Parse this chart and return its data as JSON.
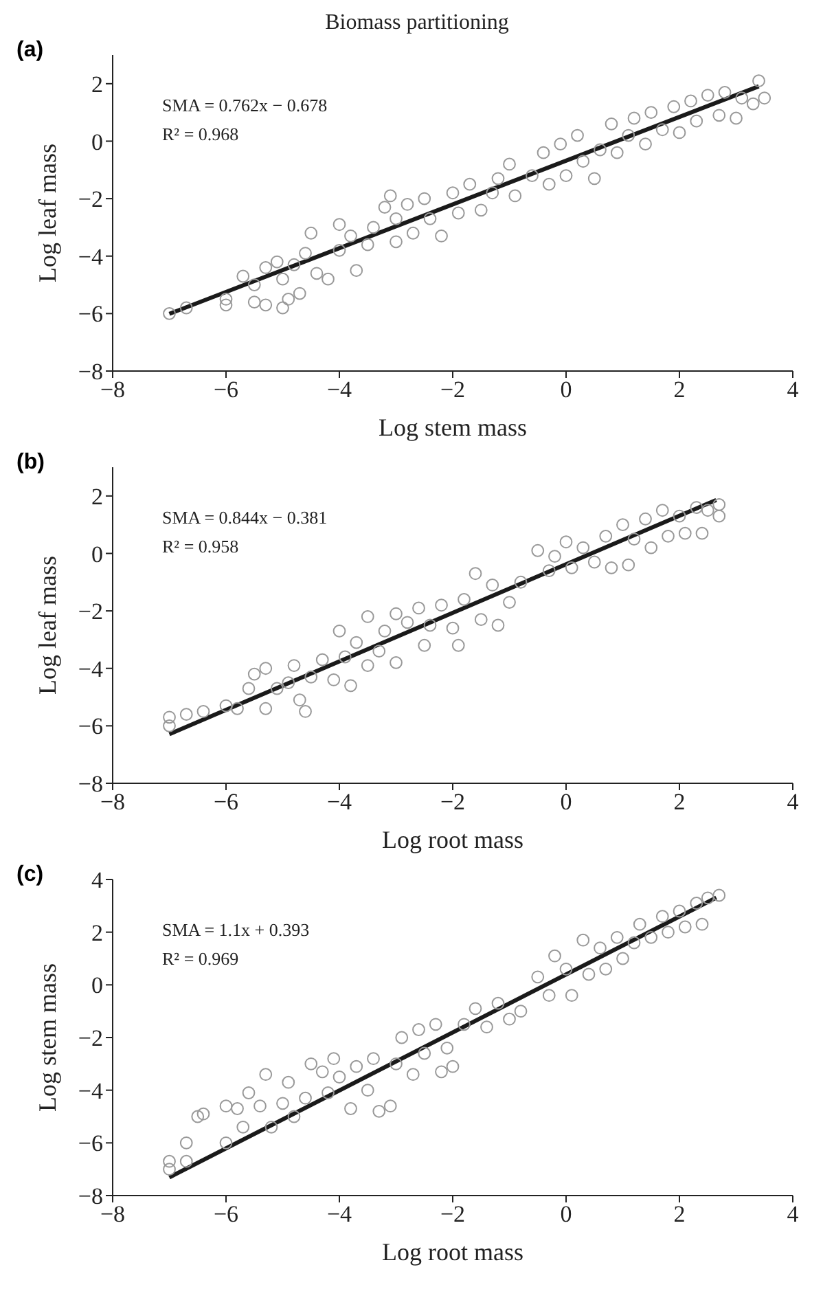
{
  "chart_data": [
    {
      "type": "scatter",
      "title": "Biomass partitioning",
      "xlabel": "Log stem mass",
      "ylabel": "Log leaf mass",
      "annotations": [
        "(a)",
        "SMA = 0.762x − 0.678",
        "R² = 0.968"
      ],
      "xlim": [
        -8,
        4
      ],
      "xticks": [
        -8,
        -6,
        -4,
        -2,
        0,
        2,
        4
      ],
      "ylim": [
        -8,
        3
      ],
      "yticks": [
        -8,
        -6,
        -4,
        -2,
        0,
        2
      ],
      "series": [
        {
          "marker": "circle",
          "color": "#999999",
          "x": [
            -7,
            -6.7,
            -6,
            -6,
            -5.7,
            -5.5,
            -5.5,
            -5.3,
            -5.3,
            -5.1,
            -5,
            -5,
            -4.9,
            -4.8,
            -4.7,
            -4.6,
            -4.5,
            -4.4,
            -4.2,
            -4,
            -4,
            -3.8,
            -3.7,
            -3.5,
            -3.4,
            -3.2,
            -3.1,
            -3,
            -3,
            -2.8,
            -2.7,
            -2.5,
            -2.4,
            -2.2,
            -2,
            -1.9,
            -1.7,
            -1.5,
            -1.3,
            -1.2,
            -1,
            -0.9,
            -0.6,
            -0.4,
            -0.3,
            -0.1,
            0,
            0.2,
            0.3,
            0.5,
            0.6,
            0.8,
            0.9,
            1.1,
            1.2,
            1.4,
            1.5,
            1.7,
            1.9,
            2,
            2.2,
            2.3,
            2.5,
            2.7,
            2.8,
            3,
            3.1,
            3.3,
            3.4,
            3.5
          ],
          "values": [
            -6,
            -5.8,
            -5.5,
            -5.7,
            -4.7,
            -5,
            -5.6,
            -4.4,
            -5.7,
            -4.2,
            -4.8,
            -5.8,
            -5.5,
            -4.3,
            -5.3,
            -3.9,
            -3.2,
            -4.6,
            -4.8,
            -2.9,
            -3.8,
            -3.3,
            -4.5,
            -3.6,
            -3,
            -2.3,
            -1.9,
            -3.5,
            -2.7,
            -2.2,
            -3.2,
            -2,
            -2.7,
            -3.3,
            -1.8,
            -2.5,
            -1.5,
            -2.4,
            -1.8,
            -1.3,
            -0.8,
            -1.9,
            -1.2,
            -0.4,
            -1.5,
            -0.1,
            -1.2,
            0.2,
            -0.7,
            -1.3,
            -0.3,
            0.6,
            -0.4,
            0.2,
            0.8,
            -0.1,
            1,
            0.4,
            1.2,
            0.3,
            1.4,
            0.7,
            1.6,
            0.9,
            1.7,
            0.8,
            1.5,
            1.3,
            2.1,
            1.5
          ]
        },
        {
          "type": "line",
          "color": "#1a1a1a",
          "x": [
            -7,
            3.4
          ],
          "values": [
            -6.01,
            1.91
          ]
        }
      ]
    },
    {
      "type": "scatter",
      "xlabel": "Log root mass",
      "ylabel": "Log leaf mass",
      "annotations": [
        "(b)",
        "SMA = 0.844x − 0.381",
        "R² = 0.958"
      ],
      "xlim": [
        -8,
        4
      ],
      "xticks": [
        -8,
        -6,
        -4,
        -2,
        0,
        2,
        4
      ],
      "ylim": [
        -8,
        3
      ],
      "yticks": [
        -8,
        -6,
        -4,
        -2,
        0,
        2
      ],
      "series": [
        {
          "marker": "circle",
          "color": "#999999",
          "x": [
            -7,
            -7,
            -6.7,
            -6.4,
            -6,
            -5.8,
            -5.6,
            -5.5,
            -5.3,
            -5.3,
            -5.1,
            -4.9,
            -4.8,
            -4.7,
            -4.6,
            -4.5,
            -4.3,
            -4.1,
            -4,
            -3.9,
            -3.8,
            -3.7,
            -3.5,
            -3.5,
            -3.3,
            -3.2,
            -3,
            -3,
            -2.8,
            -2.6,
            -2.5,
            -2.4,
            -2.2,
            -2,
            -1.9,
            -1.8,
            -1.6,
            -1.5,
            -1.3,
            -1.2,
            -1,
            -0.8,
            -0.5,
            -0.3,
            -0.2,
            0,
            0.1,
            0.3,
            0.5,
            0.7,
            0.8,
            1,
            1.1,
            1.2,
            1.4,
            1.5,
            1.7,
            1.8,
            2,
            2.1,
            2.3,
            2.4,
            2.5,
            2.7,
            2.7
          ],
          "values": [
            -5.7,
            -6,
            -5.6,
            -5.5,
            -5.3,
            -5.4,
            -4.7,
            -4.2,
            -4,
            -5.4,
            -4.7,
            -4.5,
            -3.9,
            -5.1,
            -5.5,
            -4.3,
            -3.7,
            -4.4,
            -2.7,
            -3.6,
            -4.6,
            -3.1,
            -2.2,
            -3.9,
            -3.4,
            -2.7,
            -2.1,
            -3.8,
            -2.4,
            -1.9,
            -3.2,
            -2.5,
            -1.8,
            -2.6,
            -3.2,
            -1.6,
            -0.7,
            -2.3,
            -1.1,
            -2.5,
            -1.7,
            -1,
            0.1,
            -0.6,
            -0.1,
            0.4,
            -0.5,
            0.2,
            -0.3,
            0.6,
            -0.5,
            1,
            -0.4,
            0.5,
            1.2,
            0.2,
            1.5,
            0.6,
            1.3,
            0.7,
            1.6,
            0.7,
            1.5,
            1.3,
            1.7
          ]
        },
        {
          "type": "line",
          "color": "#1a1a1a",
          "x": [
            -7,
            2.65
          ],
          "values": [
            -6.29,
            1.86
          ]
        }
      ]
    },
    {
      "type": "scatter",
      "xlabel": "Log root mass",
      "ylabel": "Log stem mass",
      "annotations": [
        "(c)",
        "SMA = 1.1x + 0.393",
        "R² = 0.969"
      ],
      "xlim": [
        -8,
        4
      ],
      "xticks": [
        -8,
        -6,
        -4,
        -2,
        0,
        2,
        4
      ],
      "ylim": [
        -8,
        4
      ],
      "yticks": [
        -8,
        -6,
        -4,
        -2,
        0,
        2,
        4
      ],
      "series": [
        {
          "marker": "circle",
          "color": "#999999",
          "x": [
            -7,
            -7,
            -6.7,
            -6.7,
            -6.5,
            -6.4,
            -6,
            -6,
            -5.8,
            -5.7,
            -5.6,
            -5.4,
            -5.3,
            -5.2,
            -5,
            -4.9,
            -4.8,
            -4.6,
            -4.5,
            -4.3,
            -4.2,
            -4.1,
            -4,
            -3.8,
            -3.7,
            -3.5,
            -3.4,
            -3.3,
            -3.1,
            -3,
            -2.9,
            -2.7,
            -2.6,
            -2.5,
            -2.3,
            -2.2,
            -2.1,
            -2,
            -1.8,
            -1.6,
            -1.4,
            -1.2,
            -1,
            -0.8,
            -0.5,
            -0.3,
            -0.2,
            0,
            0.1,
            0.3,
            0.4,
            0.6,
            0.7,
            0.9,
            1,
            1.2,
            1.3,
            1.5,
            1.7,
            1.8,
            2,
            2.1,
            2.3,
            2.4,
            2.5,
            2.7
          ],
          "values": [
            -6.7,
            -7,
            -6,
            -6.7,
            -5,
            -4.9,
            -4.6,
            -6,
            -4.7,
            -5.4,
            -4.1,
            -4.6,
            -3.4,
            -5.4,
            -4.5,
            -3.7,
            -5,
            -4.3,
            -3,
            -3.3,
            -4.1,
            -2.8,
            -3.5,
            -4.7,
            -3.1,
            -4,
            -2.8,
            -4.8,
            -4.6,
            -3,
            -2,
            -3.4,
            -1.7,
            -2.6,
            -1.5,
            -3.3,
            -2.4,
            -3.1,
            -1.5,
            -0.9,
            -1.6,
            -0.7,
            -1.3,
            -1,
            0.3,
            -0.4,
            1.1,
            0.6,
            -0.4,
            1.7,
            0.4,
            1.4,
            0.6,
            1.8,
            1,
            1.6,
            2.3,
            1.8,
            2.6,
            2,
            2.8,
            2.2,
            3.1,
            2.3,
            3.3,
            3.4
          ]
        },
        {
          "type": "line",
          "color": "#1a1a1a",
          "x": [
            -7,
            2.65
          ],
          "values": [
            -7.31,
            3.31
          ]
        }
      ]
    }
  ]
}
